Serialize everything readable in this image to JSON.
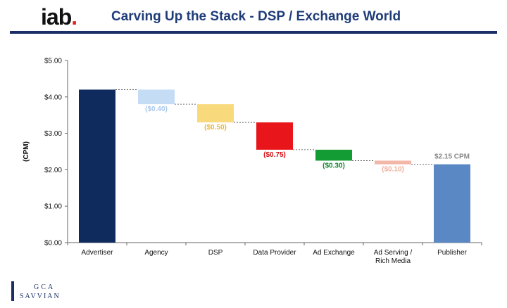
{
  "header": {
    "logo_text": "iab",
    "logo_dot": ".",
    "title": "Carving Up the Stack - DSP / Exchange World"
  },
  "footer": {
    "line1": "GCA",
    "line2": "SAVVIAN"
  },
  "chart_data": {
    "type": "bar",
    "title": "",
    "xlabel": "",
    "ylabel": "(CPM)",
    "ylim": [
      0,
      5
    ],
    "y_ticks": [
      "$0.00",
      "$1.00",
      "$2.00",
      "$3.00",
      "$4.00",
      "$5.00"
    ],
    "categories": [
      [
        "Advertiser"
      ],
      [
        "Agency"
      ],
      [
        "DSP"
      ],
      [
        "Data Provider"
      ],
      [
        "Ad Exchange"
      ],
      [
        "Ad Serving /",
        "Rich Media"
      ],
      [
        "Publisher"
      ]
    ],
    "bars": [
      {
        "low": 0,
        "high": 4.2,
        "label": "",
        "color": "#0f2a5c"
      },
      {
        "low": 3.8,
        "high": 4.2,
        "label": "($0.40)",
        "color": "#c5dcf5",
        "label_color": "#a9c8ec"
      },
      {
        "low": 3.3,
        "high": 3.8,
        "label": "($0.50)",
        "color": "#f8d97c",
        "label_color": "#e8b838"
      },
      {
        "low": 2.55,
        "high": 3.3,
        "label": "($0.75)",
        "color": "#e8161b",
        "label_color": "#d40f14"
      },
      {
        "low": 2.25,
        "high": 2.55,
        "label": "($0.30)",
        "color": "#149c34",
        "label_color": "#0f8a2c"
      },
      {
        "low": 2.15,
        "high": 2.25,
        "label": "($0.10)",
        "color": "#f2b7a8",
        "label_color": "#efb0a0"
      },
      {
        "low": 0,
        "high": 2.15,
        "label": "$2.15 CPM",
        "color": "#5a88c4",
        "label_color": "#888888"
      }
    ]
  }
}
